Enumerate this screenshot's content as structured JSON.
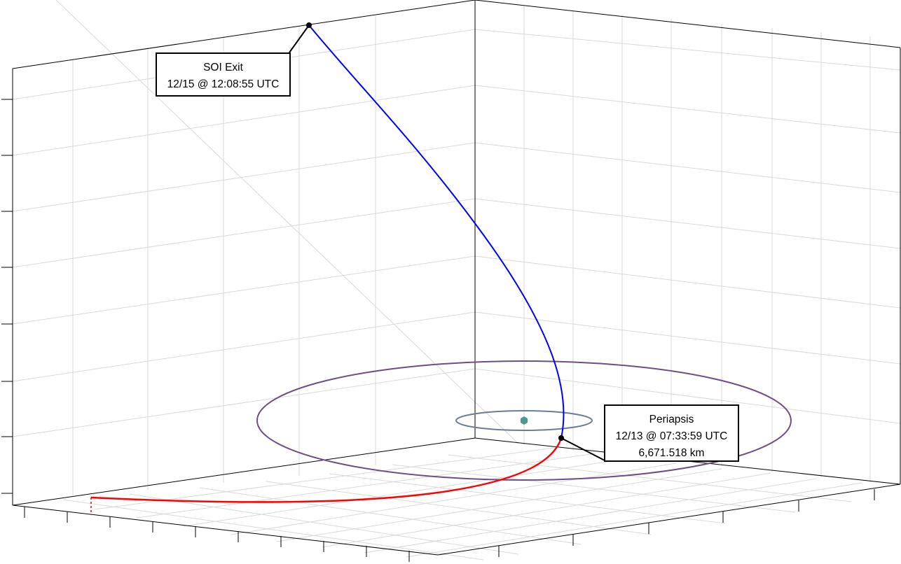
{
  "colors": {
    "arrival_leg": "#ff0000",
    "departure_leg": "#0000ff",
    "outer_orbit": "#6b4e8a",
    "inner_orbit": "#6b7c93",
    "central_body": "#4b9a8c",
    "grid": "#d9d9d9",
    "axes": "#000000"
  },
  "annotations": {
    "soi_exit": {
      "title": "SOI Exit",
      "time": "12/15 @ 12:08:55 UTC"
    },
    "periapsis": {
      "title": "Periapsis",
      "time": "12/13 @ 07:33:59 UTC",
      "altitude": "6,671.518 km"
    }
  }
}
